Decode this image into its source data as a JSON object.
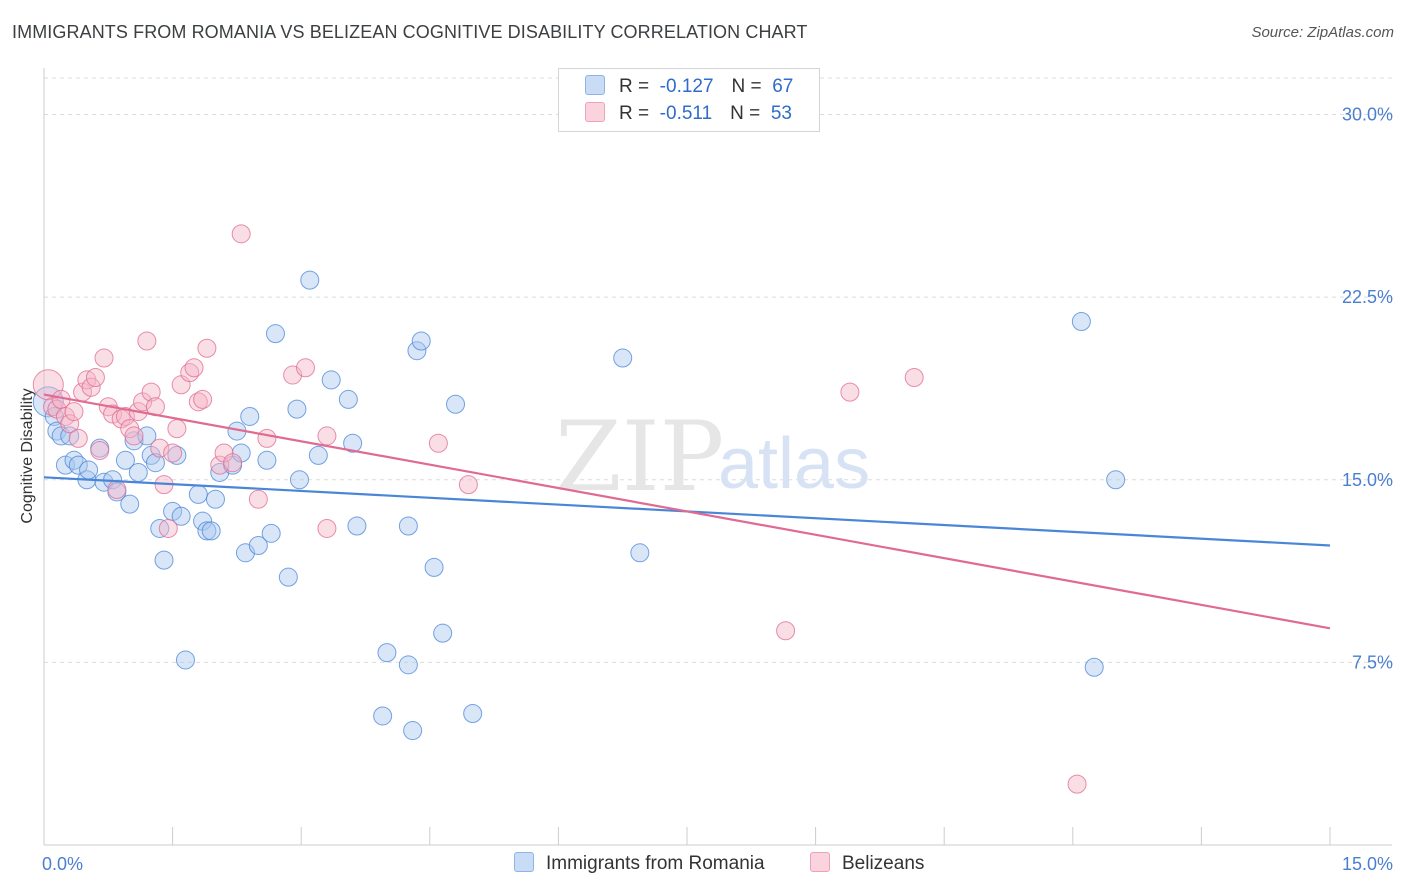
{
  "header": {
    "title": "IMMIGRANTS FROM ROMANIA VS BELIZEAN COGNITIVE DISABILITY CORRELATION CHART",
    "source": "Source: ZipAtlas.com"
  },
  "watermark": {
    "zip": "ZIP",
    "atlas": "atlas"
  },
  "legend": {
    "rows": [
      {
        "r_label": "R =",
        "r_value": "-0.127",
        "n_label": "N =",
        "n_value": "67",
        "color": "#a8c8f0"
      },
      {
        "r_label": "R =",
        "r_value": "-0.511",
        "n_label": "N =",
        "n_value": "53",
        "color": "#f5b6c8"
      }
    ]
  },
  "bottom_legend": {
    "items": [
      {
        "label": "Immigrants from Romania",
        "color": "#a8c8f0"
      },
      {
        "label": "Belizeans",
        "color": "#f5b6c8"
      }
    ]
  },
  "chart_data": {
    "type": "scatter",
    "title": "IMMIGRANTS FROM ROMANIA VS BELIZEAN COGNITIVE DISABILITY CORRELATION CHART",
    "xlabel": "",
    "ylabel": "Cognitive Disability",
    "xlim": [
      0,
      15
    ],
    "ylim": [
      0,
      31.5
    ],
    "x_tick_labels": [
      "0.0%",
      "15.0%"
    ],
    "y_ticks": [
      7.5,
      15.0,
      22.5,
      30.0
    ],
    "y_tick_labels": [
      "7.5%",
      "15.0%",
      "22.5%",
      "30.0%"
    ],
    "grid": true,
    "legend_position": "top-center",
    "series": [
      {
        "name": "Immigrants from Romania",
        "color": "#4a86d8",
        "fill": "#a8c8f0",
        "points": [
          [
            0.05,
            18.2
          ],
          [
            0.12,
            17.6
          ],
          [
            0.15,
            17.0
          ],
          [
            0.2,
            16.8
          ],
          [
            0.25,
            15.6
          ],
          [
            0.35,
            15.8
          ],
          [
            0.4,
            15.6
          ],
          [
            0.5,
            15.0
          ],
          [
            0.52,
            15.4
          ],
          [
            0.65,
            16.3
          ],
          [
            0.7,
            14.9
          ],
          [
            0.8,
            15.0
          ],
          [
            0.85,
            14.5
          ],
          [
            0.95,
            15.8
          ],
          [
            1.0,
            14.0
          ],
          [
            1.05,
            16.6
          ],
          [
            1.1,
            15.3
          ],
          [
            1.2,
            16.8
          ],
          [
            1.25,
            16.0
          ],
          [
            1.3,
            15.7
          ],
          [
            1.35,
            13.0
          ],
          [
            1.4,
            11.7
          ],
          [
            1.5,
            13.7
          ],
          [
            1.55,
            16.0
          ],
          [
            1.6,
            13.5
          ],
          [
            1.65,
            7.6
          ],
          [
            1.8,
            14.4
          ],
          [
            1.85,
            13.3
          ],
          [
            1.9,
            12.9
          ],
          [
            1.95,
            12.9
          ],
          [
            2.0,
            14.2
          ],
          [
            2.05,
            15.3
          ],
          [
            2.2,
            15.6
          ],
          [
            2.25,
            17.0
          ],
          [
            2.3,
            16.1
          ],
          [
            2.35,
            12.0
          ],
          [
            2.4,
            17.6
          ],
          [
            2.5,
            12.3
          ],
          [
            2.6,
            15.8
          ],
          [
            2.65,
            12.8
          ],
          [
            2.7,
            21.0
          ],
          [
            2.85,
            11.0
          ],
          [
            2.95,
            17.9
          ],
          [
            2.98,
            15.0
          ],
          [
            3.1,
            23.2
          ],
          [
            3.2,
            16.0
          ],
          [
            3.35,
            19.1
          ],
          [
            3.55,
            18.3
          ],
          [
            3.6,
            16.5
          ],
          [
            3.65,
            13.1
          ],
          [
            3.95,
            5.3
          ],
          [
            4.0,
            7.9
          ],
          [
            4.25,
            13.1
          ],
          [
            4.25,
            7.4
          ],
          [
            4.3,
            4.7
          ],
          [
            4.35,
            20.3
          ],
          [
            4.4,
            20.7
          ],
          [
            4.55,
            11.4
          ],
          [
            4.65,
            8.7
          ],
          [
            4.8,
            18.1
          ],
          [
            5.0,
            5.4
          ],
          [
            6.75,
            20.0
          ],
          [
            6.95,
            12.0
          ],
          [
            12.1,
            21.5
          ],
          [
            12.25,
            7.3
          ],
          [
            12.5,
            15.0
          ],
          [
            0.3,
            16.8
          ]
        ]
      },
      {
        "name": "Belizeans",
        "color": "#e06a92",
        "fill": "#f5b6c8",
        "points": [
          [
            0.05,
            18.9
          ],
          [
            0.1,
            18.0
          ],
          [
            0.15,
            17.9
          ],
          [
            0.2,
            18.3
          ],
          [
            0.25,
            17.6
          ],
          [
            0.3,
            17.3
          ],
          [
            0.35,
            17.8
          ],
          [
            0.4,
            16.7
          ],
          [
            0.45,
            18.6
          ],
          [
            0.5,
            19.1
          ],
          [
            0.55,
            18.8
          ],
          [
            0.6,
            19.2
          ],
          [
            0.65,
            16.2
          ],
          [
            0.7,
            20.0
          ],
          [
            0.75,
            18.0
          ],
          [
            0.8,
            17.7
          ],
          [
            0.85,
            14.6
          ],
          [
            0.9,
            17.5
          ],
          [
            0.95,
            17.6
          ],
          [
            1.0,
            17.1
          ],
          [
            1.05,
            16.8
          ],
          [
            1.1,
            17.8
          ],
          [
            1.15,
            18.2
          ],
          [
            1.2,
            20.7
          ],
          [
            1.25,
            18.6
          ],
          [
            1.3,
            18.0
          ],
          [
            1.35,
            16.3
          ],
          [
            1.4,
            14.8
          ],
          [
            1.45,
            13.0
          ],
          [
            1.5,
            16.1
          ],
          [
            1.55,
            17.1
          ],
          [
            1.6,
            18.9
          ],
          [
            1.7,
            19.4
          ],
          [
            1.75,
            19.6
          ],
          [
            1.8,
            18.2
          ],
          [
            1.85,
            18.3
          ],
          [
            1.9,
            20.4
          ],
          [
            2.05,
            15.6
          ],
          [
            2.1,
            16.1
          ],
          [
            2.2,
            15.7
          ],
          [
            2.3,
            25.1
          ],
          [
            2.5,
            14.2
          ],
          [
            2.6,
            16.7
          ],
          [
            2.9,
            19.3
          ],
          [
            3.05,
            19.6
          ],
          [
            3.3,
            13.0
          ],
          [
            3.3,
            16.8
          ],
          [
            4.6,
            16.5
          ],
          [
            4.95,
            14.8
          ],
          [
            8.65,
            8.8
          ],
          [
            9.4,
            18.6
          ],
          [
            10.15,
            19.2
          ],
          [
            12.05,
            2.5
          ]
        ]
      }
    ],
    "trendlines": [
      {
        "series": "Immigrants from Romania",
        "x": [
          0,
          15
        ],
        "y": [
          15.1,
          12.3
        ]
      },
      {
        "series": "Belizeans",
        "x": [
          0,
          15
        ],
        "y": [
          18.5,
          8.9
        ]
      }
    ]
  }
}
